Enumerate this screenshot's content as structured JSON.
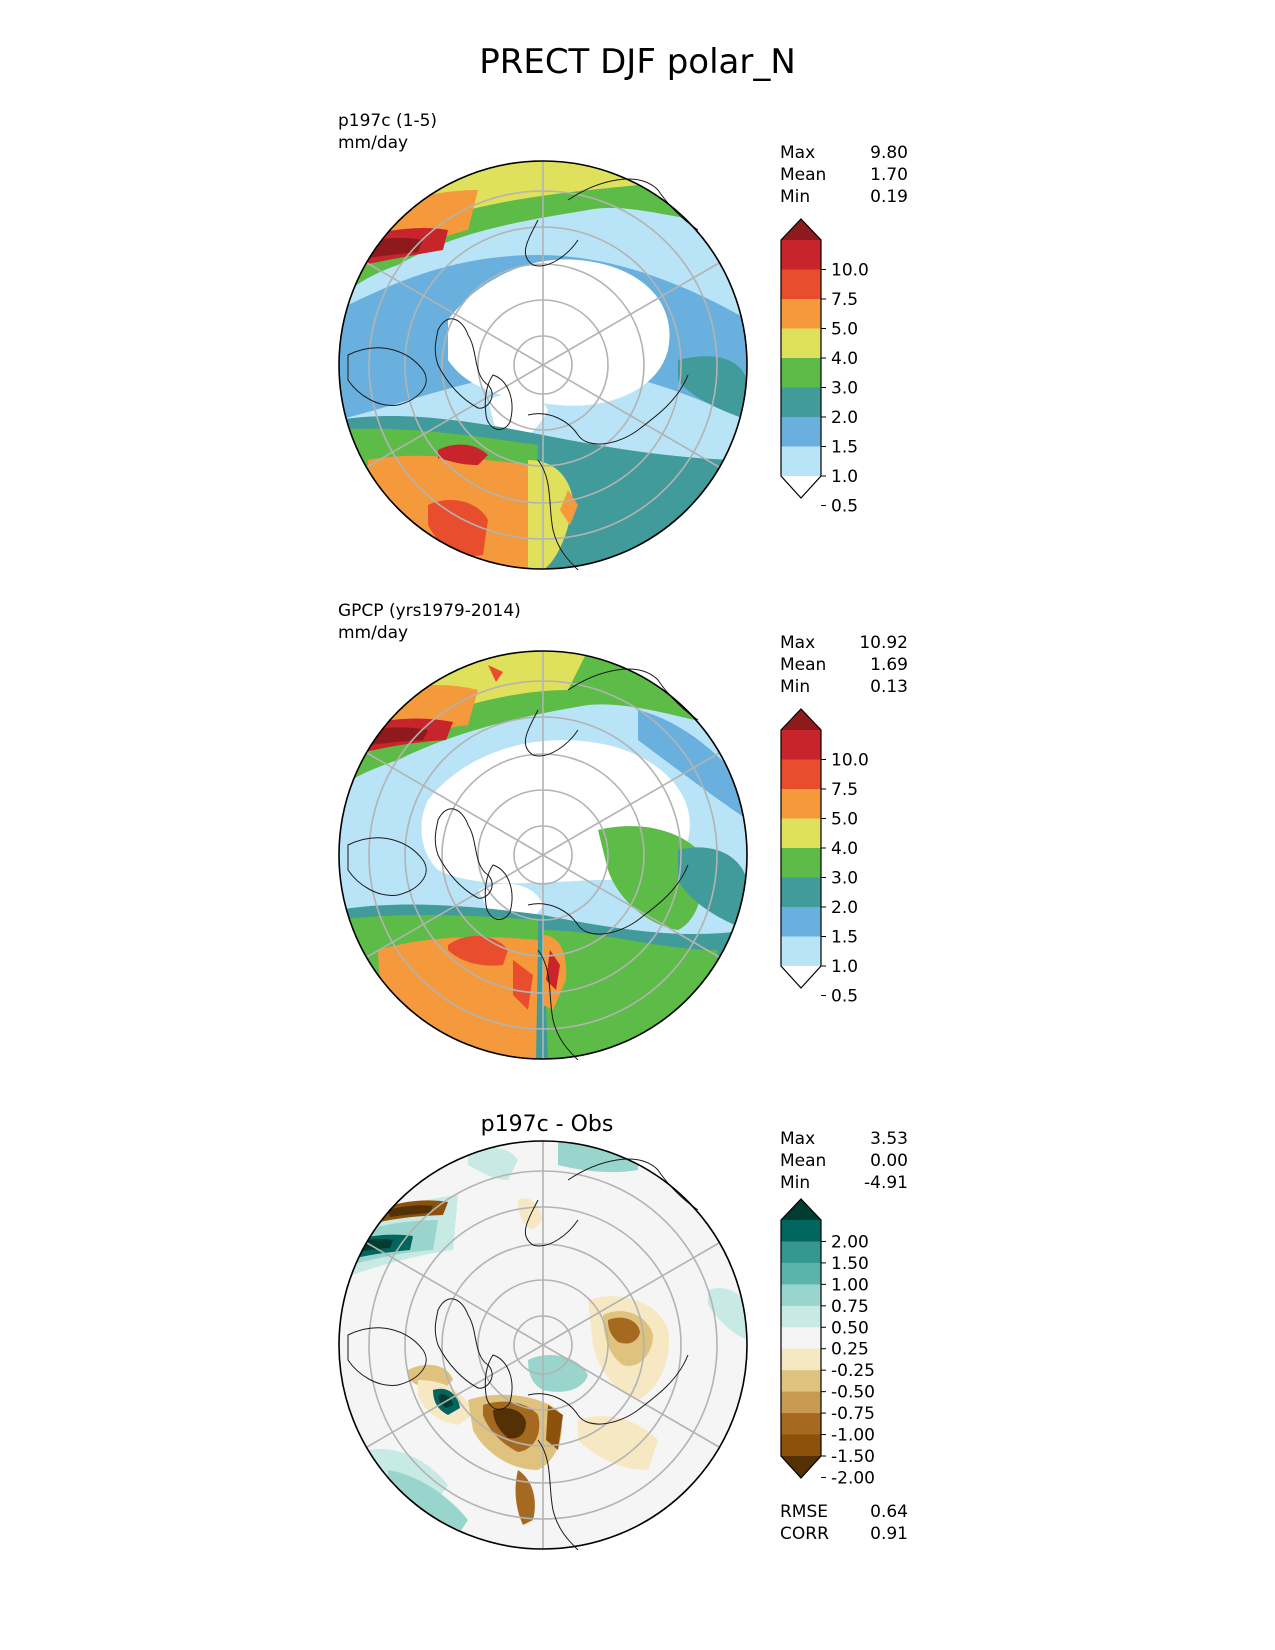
{
  "figure": {
    "title": "PRECT DJF polar_N"
  },
  "panels": [
    {
      "id": "model",
      "label_line1": "p197c (1-5)",
      "label_line2": "mm/day",
      "stats": [
        {
          "label": "Max",
          "value": "9.80"
        },
        {
          "label": "Mean",
          "value": "1.70"
        },
        {
          "label": "Min",
          "value": "0.19"
        }
      ],
      "colorbar": {
        "ticks": [
          "10.0",
          "7.5",
          "5.0",
          "4.0",
          "3.0",
          "2.0",
          "1.5",
          "1.0",
          "0.5"
        ],
        "colors": [
          "#8f1a1d",
          "#c8242b",
          "#e84e2e",
          "#f49a3c",
          "#dfe05c",
          "#5dbb47",
          "#419b9a",
          "#6ab0df",
          "#b9e3f6",
          "#ffffff"
        ]
      }
    },
    {
      "id": "obs",
      "label_line1": "GPCP (yrs1979-2014)",
      "label_line2": "mm/day",
      "stats": [
        {
          "label": "Max",
          "value": "10.92"
        },
        {
          "label": "Mean",
          "value": "1.69"
        },
        {
          "label": "Min",
          "value": "0.13"
        }
      ],
      "colorbar": {
        "ticks": [
          "10.0",
          "7.5",
          "5.0",
          "4.0",
          "3.0",
          "2.0",
          "1.5",
          "1.0",
          "0.5"
        ],
        "colors": [
          "#8f1a1d",
          "#c8242b",
          "#e84e2e",
          "#f49a3c",
          "#dfe05c",
          "#5dbb47",
          "#419b9a",
          "#6ab0df",
          "#b9e3f6",
          "#ffffff"
        ]
      }
    },
    {
      "id": "diff",
      "title": "p197c - Obs",
      "stats": [
        {
          "label": "Max",
          "value": "3.53"
        },
        {
          "label": "Mean",
          "value": "0.00"
        },
        {
          "label": "Min",
          "value": "-4.91"
        }
      ],
      "metrics": [
        {
          "label": "RMSE",
          "value": "0.64"
        },
        {
          "label": "CORR",
          "value": "0.91"
        }
      ],
      "colorbar": {
        "ticks": [
          "2.00",
          "1.50",
          "1.00",
          "0.75",
          "0.50",
          "0.25",
          "-0.25",
          "-0.50",
          "-0.75",
          "-1.00",
          "-1.50",
          "-2.00"
        ],
        "colors": [
          "#003c30",
          "#01665e",
          "#35978f",
          "#5ab4ac",
          "#99d5cc",
          "#c7eae5",
          "#f5f5f5",
          "#f6e8c3",
          "#dfc27d",
          "#c99b52",
          "#a56a20",
          "#8c510a",
          "#543005"
        ]
      }
    }
  ]
}
